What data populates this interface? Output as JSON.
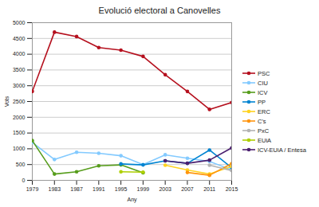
{
  "chart_data": {
    "type": "line",
    "title": "Evolució electoral a Canovelles",
    "x_label": "Any",
    "y_label": "Vots",
    "x": [
      1979,
      1983,
      1987,
      1991,
      1995,
      1999,
      2003,
      2007,
      2011,
      2015
    ],
    "xlim": [
      1979,
      2015
    ],
    "xticks": [
      1979,
      1983,
      1987,
      1991,
      1995,
      1999,
      2003,
      2007,
      2011,
      2015
    ],
    "ylim": [
      0,
      5000
    ],
    "yticks": [
      0,
      500,
      1000,
      1500,
      2000,
      2500,
      3000,
      3500,
      4000,
      4500,
      5000
    ],
    "grid": true,
    "legend": "right",
    "marker": "circle",
    "series": [
      {
        "name": "PSC",
        "color": "#b5101e",
        "values": [
          2820,
          4700,
          4560,
          4210,
          4130,
          3930,
          3350,
          2820,
          2250,
          2470
        ]
      },
      {
        "name": "CIU",
        "color": "#83caff",
        "values": [
          1200,
          660,
          890,
          860,
          780,
          500,
          810,
          700,
          600,
          330
        ]
      },
      {
        "name": "ICV",
        "color": "#579d1c",
        "values": [
          1260,
          200,
          270,
          460,
          490,
          240,
          null,
          null,
          null,
          null
        ]
      },
      {
        "name": "PP",
        "color": "#0084d1",
        "values": [
          null,
          null,
          null,
          null,
          520,
          490,
          620,
          540,
          960,
          400
        ]
      },
      {
        "name": "ERC",
        "color": "#ffd320",
        "values": [
          null,
          null,
          null,
          null,
          null,
          null,
          480,
          330,
          200,
          440
        ]
      },
      {
        "name": "C's",
        "color": "#ff950e",
        "values": [
          null,
          null,
          null,
          null,
          null,
          null,
          null,
          250,
          160,
          530
        ]
      },
      {
        "name": "PxC",
        "color": "#b3b3b3",
        "values": [
          null,
          null,
          null,
          null,
          null,
          null,
          null,
          null,
          480,
          310
        ]
      },
      {
        "name": "EUiA",
        "color": "#aecf00",
        "values": [
          null,
          null,
          null,
          null,
          270,
          260,
          null,
          null,
          null,
          null
        ]
      },
      {
        "name": "ICV-EUiA / Entesa",
        "color": "#4b1f6f",
        "values": [
          null,
          null,
          null,
          null,
          null,
          null,
          620,
          540,
          640,
          1030
        ]
      }
    ]
  }
}
